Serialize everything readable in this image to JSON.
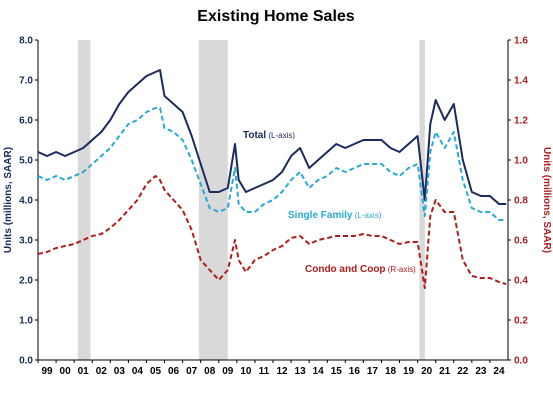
{
  "chart_data": {
    "type": "line",
    "title": "Existing Home Sales",
    "ylabel_left": "Units (millions, SAAR)",
    "ylabel_right": "Units (millions, SAAR)",
    "x_tick_labels": [
      "99",
      "00",
      "01",
      "02",
      "03",
      "04",
      "05",
      "06",
      "07",
      "08",
      "09",
      "10",
      "11",
      "12",
      "13",
      "14",
      "15",
      "16",
      "17",
      "18",
      "19",
      "20",
      "21",
      "22",
      "23",
      "24"
    ],
    "xlim": [
      1999.0,
      2025.0
    ],
    "ylim_left": [
      0.0,
      8.0
    ],
    "ylim_right": [
      0.0,
      1.6
    ],
    "y_ticks_left": [
      "0.0",
      "1.0",
      "2.0",
      "3.0",
      "4.0",
      "5.0",
      "6.0",
      "7.0",
      "8.0"
    ],
    "y_ticks_right": [
      "0.0",
      "0.2",
      "0.4",
      "0.6",
      "0.8",
      "1.0",
      "1.2",
      "1.4",
      "1.6"
    ],
    "recession_bands": [
      [
        2001.2,
        2001.9
      ],
      [
        2007.9,
        2009.5
      ],
      [
        2020.1,
        2020.4
      ]
    ],
    "series": [
      {
        "name": "Total",
        "axis": "left",
        "style": "solid",
        "color": "#1b2a5e",
        "x": [
          1999.0,
          1999.5,
          2000.0,
          2000.5,
          2001.0,
          2001.5,
          2002.0,
          2002.5,
          2003.0,
          2003.5,
          2004.0,
          2004.5,
          2005.0,
          2005.5,
          2005.75,
          2006.0,
          2006.5,
          2007.0,
          2007.5,
          2008.0,
          2008.5,
          2009.0,
          2009.5,
          2009.9,
          2010.1,
          2010.5,
          2011.0,
          2011.5,
          2012.0,
          2012.5,
          2013.0,
          2013.5,
          2014.0,
          2014.5,
          2015.0,
          2015.5,
          2016.0,
          2016.5,
          2017.0,
          2017.5,
          2018.0,
          2018.5,
          2019.0,
          2019.5,
          2020.0,
          2020.4,
          2020.7,
          2021.0,
          2021.5,
          2022.0,
          2022.5,
          2023.0,
          2023.5,
          2024.0,
          2024.5,
          2024.9
        ],
        "y": [
          5.2,
          5.1,
          5.2,
          5.1,
          5.2,
          5.3,
          5.5,
          5.7,
          6.0,
          6.4,
          6.7,
          6.9,
          7.1,
          7.2,
          7.25,
          6.6,
          6.4,
          6.2,
          5.6,
          4.9,
          4.2,
          4.2,
          4.3,
          5.4,
          4.5,
          4.2,
          4.3,
          4.4,
          4.5,
          4.7,
          5.1,
          5.3,
          4.8,
          5.0,
          5.2,
          5.4,
          5.3,
          5.4,
          5.5,
          5.5,
          5.5,
          5.3,
          5.2,
          5.4,
          5.6,
          4.0,
          5.9,
          6.5,
          6.0,
          6.4,
          5.0,
          4.2,
          4.1,
          4.1,
          3.9,
          3.9
        ]
      },
      {
        "name": "Single Family",
        "axis": "left",
        "style": "dashed",
        "color": "#29a9d6",
        "x": [
          1999.0,
          1999.5,
          2000.0,
          2000.5,
          2001.0,
          2001.5,
          2002.0,
          2002.5,
          2003.0,
          2003.5,
          2004.0,
          2004.5,
          2005.0,
          2005.5,
          2005.75,
          2006.0,
          2006.5,
          2007.0,
          2007.5,
          2008.0,
          2008.5,
          2009.0,
          2009.5,
          2009.9,
          2010.1,
          2010.5,
          2011.0,
          2011.5,
          2012.0,
          2012.5,
          2013.0,
          2013.5,
          2014.0,
          2014.5,
          2015.0,
          2015.5,
          2016.0,
          2016.5,
          2017.0,
          2017.5,
          2018.0,
          2018.5,
          2019.0,
          2019.5,
          2020.0,
          2020.4,
          2020.7,
          2021.0,
          2021.5,
          2022.0,
          2022.5,
          2023.0,
          2023.5,
          2024.0,
          2024.5,
          2024.9
        ],
        "y": [
          4.6,
          4.5,
          4.6,
          4.5,
          4.6,
          4.7,
          4.9,
          5.1,
          5.3,
          5.6,
          5.9,
          6.0,
          6.2,
          6.3,
          6.3,
          5.8,
          5.7,
          5.5,
          5.0,
          4.4,
          3.8,
          3.7,
          3.8,
          4.8,
          3.9,
          3.7,
          3.7,
          3.9,
          4.0,
          4.2,
          4.5,
          4.7,
          4.3,
          4.5,
          4.6,
          4.8,
          4.7,
          4.8,
          4.9,
          4.9,
          4.9,
          4.7,
          4.6,
          4.8,
          4.9,
          3.6,
          5.2,
          5.7,
          5.3,
          5.7,
          4.5,
          3.8,
          3.7,
          3.7,
          3.5,
          3.5
        ]
      },
      {
        "name": "Condo and Coop",
        "axis": "right",
        "style": "dashed",
        "color": "#b01c1c",
        "x": [
          1999.0,
          1999.5,
          2000.0,
          2000.5,
          2001.0,
          2001.5,
          2002.0,
          2002.5,
          2003.0,
          2003.5,
          2004.0,
          2004.5,
          2005.0,
          2005.5,
          2005.75,
          2006.0,
          2006.5,
          2007.0,
          2007.5,
          2008.0,
          2008.5,
          2009.0,
          2009.5,
          2009.9,
          2010.1,
          2010.5,
          2011.0,
          2011.5,
          2012.0,
          2012.5,
          2013.0,
          2013.5,
          2014.0,
          2014.5,
          2015.0,
          2015.5,
          2016.0,
          2016.5,
          2017.0,
          2017.5,
          2018.0,
          2018.5,
          2019.0,
          2019.5,
          2020.0,
          2020.4,
          2020.7,
          2021.0,
          2021.5,
          2022.0,
          2022.5,
          2023.0,
          2023.5,
          2024.0,
          2024.5,
          2024.9
        ],
        "y": [
          0.53,
          0.54,
          0.56,
          0.57,
          0.58,
          0.6,
          0.62,
          0.63,
          0.66,
          0.7,
          0.75,
          0.8,
          0.88,
          0.92,
          0.9,
          0.85,
          0.8,
          0.75,
          0.65,
          0.5,
          0.45,
          0.4,
          0.45,
          0.6,
          0.5,
          0.44,
          0.5,
          0.52,
          0.55,
          0.57,
          0.61,
          0.62,
          0.58,
          0.6,
          0.61,
          0.62,
          0.62,
          0.62,
          0.63,
          0.62,
          0.62,
          0.6,
          0.58,
          0.59,
          0.59,
          0.36,
          0.72,
          0.8,
          0.74,
          0.74,
          0.5,
          0.42,
          0.41,
          0.41,
          0.39,
          0.38
        ]
      }
    ],
    "annotations": [
      {
        "text": "Total",
        "suffix": " (L-axis)",
        "color": "#1b2a5e"
      },
      {
        "text": "Single Family",
        "suffix": " (L-axis)",
        "color": "#29a9d6"
      },
      {
        "text": "Condo and Coop",
        "suffix": " (R-axis)",
        "color": "#b01c1c"
      }
    ],
    "colors": {
      "left_axis": "#1b2a5e",
      "right_axis": "#b01c1c",
      "recession": "#d9d9d9"
    }
  }
}
